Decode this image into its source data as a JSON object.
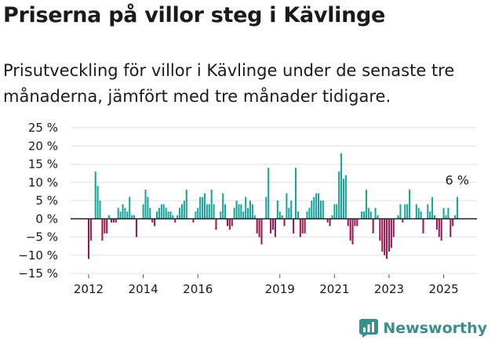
{
  "title": "Priserna på villor steg i Kävlinge",
  "subtitle": "Prisutveckling för villor i Kävlinge under de senaste tre månaderna, jämfört med tre månader tidigare.",
  "brand": "Newsworthy",
  "colors": {
    "positive": "#16a39a",
    "negative": "#9b1552",
    "grid": "#e2e2e2",
    "zero": "#222222",
    "brand": "#3a8f8a"
  },
  "chart_data": {
    "type": "bar",
    "ylabel": "",
    "xlabel": "",
    "ylim": [
      -15,
      25
    ],
    "y_ticks": [
      -15,
      -10,
      -5,
      0,
      5,
      10,
      15,
      20,
      25
    ],
    "y_tick_labels": [
      "−15 %",
      "−10 %",
      "−5 %",
      "0 %",
      "5 %",
      "10 %",
      "15 %",
      "20 %",
      "25 %"
    ],
    "x_tick_labels": [
      "2012",
      "2014",
      "2016",
      "2019",
      "2021",
      "2023",
      "2025"
    ],
    "x_tick_indices": [
      0,
      24,
      48,
      84,
      108,
      132,
      156
    ],
    "last_value_label": "6 %",
    "grid": true,
    "values": [
      -11,
      -6,
      0,
      13,
      9,
      5,
      -6,
      -4,
      -4,
      1,
      -1,
      -1,
      -1,
      3,
      2,
      4,
      3,
      2,
      6,
      1,
      1,
      -5,
      0,
      0,
      4,
      8,
      6,
      3,
      -1,
      -2,
      2,
      3,
      4,
      4,
      3,
      2,
      2,
      1,
      -1,
      1,
      3,
      4,
      5,
      8,
      0,
      0,
      -1,
      2,
      3,
      6,
      6,
      7,
      4,
      4,
      8,
      4,
      -3,
      0,
      2,
      7,
      4,
      -2,
      -3,
      -2,
      3,
      5,
      4,
      4,
      2,
      6,
      3,
      5,
      4,
      1,
      -4,
      -5,
      -7,
      0,
      6,
      14,
      -4,
      -3,
      -5,
      5,
      2,
      1,
      -2,
      7,
      3,
      5,
      -4,
      14,
      2,
      -5,
      -4,
      -4,
      2,
      3,
      5,
      6,
      7,
      7,
      5,
      5,
      0,
      -1,
      -2,
      1,
      4,
      4,
      13,
      18,
      11,
      12,
      -2,
      -6,
      -7,
      -2,
      -2,
      0,
      2,
      2,
      8,
      3,
      2,
      -4,
      3,
      1,
      -6,
      -9,
      -10,
      -11,
      -9,
      -8,
      -5,
      0,
      1,
      4,
      -1,
      4,
      4,
      8,
      0,
      0,
      4,
      3,
      2,
      -4,
      0,
      4,
      2,
      6,
      1,
      -3,
      -5,
      -6,
      3,
      1,
      3,
      -5,
      -2,
      1,
      6
    ]
  }
}
